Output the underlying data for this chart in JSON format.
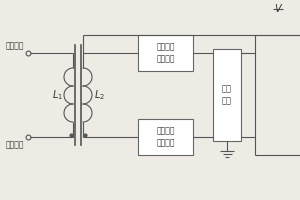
{
  "bg_color": "#eeebe5",
  "line_color": "#555555",
  "box_fill": "#ffffff",
  "box_edge": "#666666",
  "font_color": "#333333",
  "label_output": "号输出端",
  "label_input": "号输入端",
  "label_L1": "L",
  "label_L1_sub": "1",
  "label_L2": "L",
  "label_L2_sub": "2",
  "box1_text": "高频信号\n发生模块",
  "box2_text": "高频信号\n接收模块",
  "box3_text": "主控\n模块",
  "V_label": "V",
  "coil_turns": 3,
  "coil_r": 9
}
